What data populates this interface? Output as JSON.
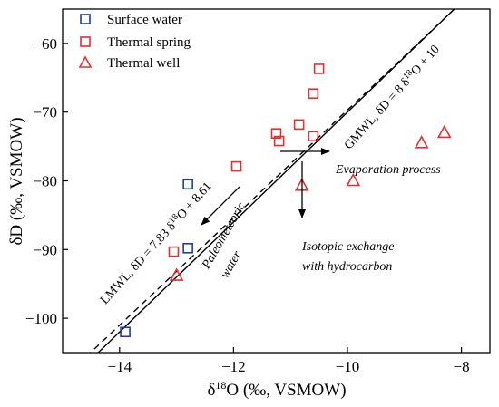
{
  "chart_data": {
    "type": "scatter",
    "xlabel_main": "δ",
    "xlabel_sup": "18",
    "xlabel_rest": "O (‰, VSMOW)",
    "ylabel": "δD (‰, VSMOW)",
    "xlim": [
      -15,
      -7.5
    ],
    "ylim": [
      -105,
      -55
    ],
    "x_ticks": [
      -14,
      -12,
      -10,
      -8
    ],
    "y_ticks": [
      -100,
      -90,
      -80,
      -70,
      -60
    ],
    "legend_position": "top-left",
    "series": [
      {
        "name": "Surface water",
        "marker": "square",
        "color": "#1f3f9a",
        "x": [
          -13.9,
          -12.8,
          -12.8
        ],
        "y": [
          -102.0,
          -80.5,
          -89.8
        ]
      },
      {
        "name": "Thermal spring",
        "marker": "square",
        "color": "#e03030",
        "x": [
          -10.5,
          -10.6,
          -10.6,
          -10.85,
          -11.25,
          -11.2,
          -11.95,
          -13.05
        ],
        "y": [
          -63.7,
          -67.3,
          -73.5,
          -71.8,
          -73.1,
          -74.2,
          -77.9,
          -90.3
        ]
      },
      {
        "name": "Thermal well",
        "marker": "triangle",
        "color": "#e03030",
        "x": [
          -8.3,
          -8.7,
          -9.9,
          -10.8,
          -13.0
        ],
        "y": [
          -73.0,
          -74.5,
          -80.0,
          -80.7,
          -93.8
        ]
      }
    ],
    "lines": [
      {
        "name": "LMWL",
        "slope": 7.83,
        "intercept": 8.61,
        "style": "dashed"
      },
      {
        "name": "GMWL",
        "slope": 8,
        "intercept": 10,
        "style": "solid"
      }
    ],
    "annotations": {
      "gmwl_label": "GMWL, δD = 8 δ¹⁸O + 10",
      "lmwl_label": "LMWL, δD = 7.83 δ¹⁸O + 8.61",
      "evaporation": "Evaporation process",
      "isotopic_line1": "Isotopic exchange",
      "isotopic_line2": "with hydrocarbon",
      "paleo_line1": "Paleometeoric",
      "paleo_line2": "water"
    }
  }
}
